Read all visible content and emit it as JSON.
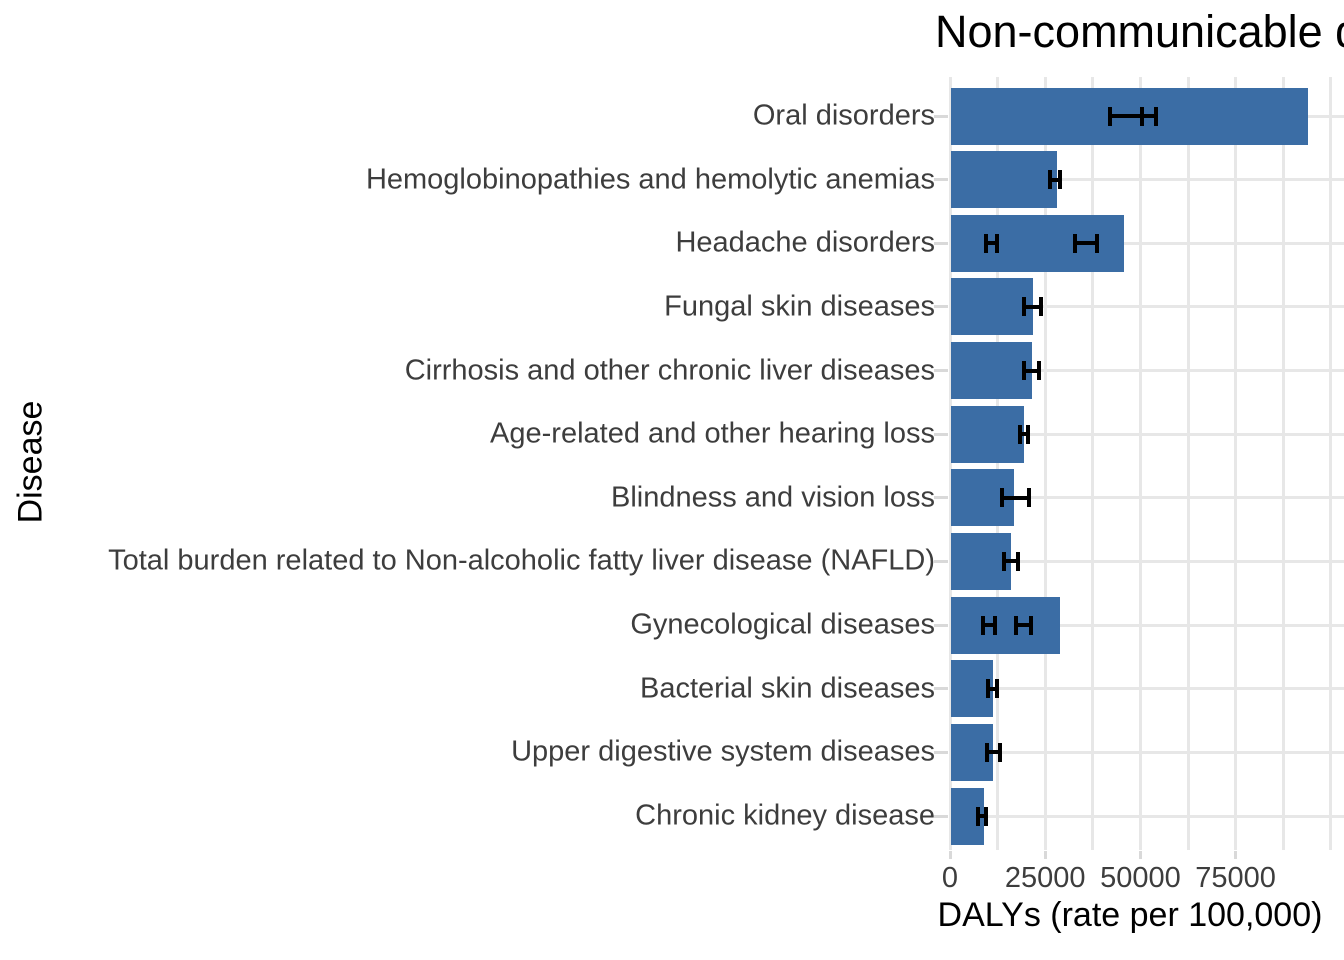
{
  "chart_data": {
    "type": "bar",
    "orientation": "horizontal",
    "title": "Non-communicable diseases",
    "title_visible_portion": "Non-communicable d",
    "xlabel": "DALYs (rate per 100,000)",
    "ylabel": "Disease",
    "categories": [
      "Oral disorders",
      "Hemoglobinopathies and hemolytic anemias",
      "Headache disorders",
      "Fungal skin diseases",
      "Cirrhosis and other chronic liver diseases",
      "Age-related and other hearing loss",
      "Blindness and vision loss",
      "Total burden related to Non-alcoholic fatty liver disease (NAFLD)",
      "Gynecological diseases",
      "Bacterial skin diseases",
      "Upper digestive system diseases",
      "Chronic kidney disease"
    ],
    "values": [
      94000,
      28000,
      45800,
      21700,
      21500,
      19400,
      16800,
      16000,
      29000,
      11400,
      11200,
      9000
    ],
    "error_bars": [
      [
        [
          42000,
          50300
        ],
        [
          50300,
          54200
        ]
      ],
      [
        [
          26200,
          28900
        ]
      ],
      [
        [
          9450,
          12350
        ],
        [
          32800,
          38500
        ]
      ],
      [
        [
          19500,
          23900
        ]
      ],
      [
        [
          19500,
          23400
        ]
      ],
      [
        [
          18400,
          20400
        ]
      ],
      [
        [
          13600,
          20700
        ]
      ],
      [
        [
          14200,
          17800
        ]
      ],
      [
        [
          8600,
          11800
        ],
        [
          17300,
          21400
        ]
      ],
      [
        [
          10000,
          12250
        ]
      ],
      [
        [
          9700,
          13100
        ]
      ],
      [
        [
          7350,
          9500
        ]
      ]
    ],
    "x_ticks": [
      0,
      25000,
      50000,
      75000
    ],
    "x_tick_labels": [
      "0",
      "25000",
      "50000",
      "75000"
    ],
    "grid_major": [
      0,
      25000,
      50000,
      75000
    ],
    "grid_minor": [
      12500,
      37500,
      62500,
      87500,
      100000
    ],
    "xlim": [
      0,
      103500
    ],
    "grid": "on",
    "legend_position": "none",
    "bar_color": "#3b6da5",
    "error_bar_color": "#000000",
    "grid_color": "#e7e7e7",
    "axis_text_color": "#3d3d3d",
    "title_color": "#000000"
  }
}
